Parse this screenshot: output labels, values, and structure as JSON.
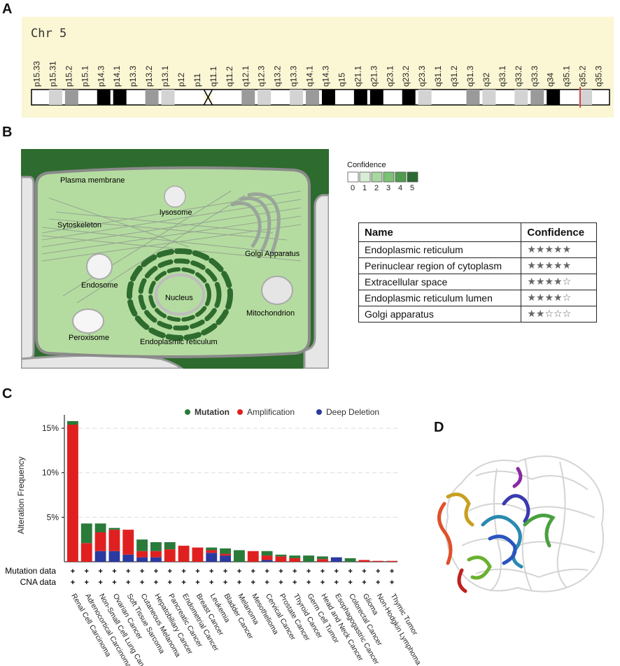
{
  "panels": {
    "a": "A",
    "b": "B",
    "c": "C",
    "d": "D"
  },
  "chromosome": {
    "title": "Chr 5",
    "bands": [
      "p15.33",
      "p15.31",
      "p15.2",
      "p15.1",
      "p14.3",
      "p14.1",
      "p13.3",
      "p13.2",
      "p13.1",
      "p12",
      "p11",
      "q11.1",
      "q11.2",
      "q12.1",
      "q12.3",
      "q13.2",
      "q13.3",
      "q14.1",
      "q14.3",
      "q15",
      "q21.1",
      "q21.3",
      "q23.1",
      "q23.2",
      "q23.3",
      "q31.1",
      "q31.2",
      "q31.3",
      "q32",
      "q33.1",
      "q33.2",
      "q33.3",
      "q34",
      "q35.1",
      "q35.2",
      "q35.3"
    ],
    "marker_color": "#e02020"
  },
  "cell": {
    "labels": {
      "plasma_membrane": "Plasma membrane",
      "lysosome": "lysosome",
      "cytoskeleton": "Sytoskeleton",
      "golgi": "Golgi Apparatus",
      "endosome": "Endosome",
      "nucleus": "Nucleus",
      "mitochondrion": "Mitochondrion",
      "peroxisome": "Peroxisome",
      "er": "Endoplasmic reticulum"
    },
    "colors": {
      "background": "#2e6b2e",
      "cell": "#b5dca0",
      "er": "#2e6b2e"
    }
  },
  "confidence_legend": {
    "title": "Confidence",
    "levels": [
      "0",
      "1",
      "2",
      "3",
      "4",
      "5"
    ],
    "colors": [
      "#ffffff",
      "#d8edd5",
      "#a9d6a2",
      "#7cc276",
      "#4f9c4e",
      "#2b6a31"
    ]
  },
  "location_table": {
    "headers": [
      "Name",
      "Confidence"
    ],
    "rows": [
      {
        "name": "Endoplasmic reticulum",
        "stars": "★★★★★"
      },
      {
        "name": "Perinuclear region of cytoplasm",
        "stars": "★★★★★"
      },
      {
        "name": "Extracellular space",
        "stars": "★★★★☆"
      },
      {
        "name": "Endoplasmic reticulum lumen",
        "stars": "★★★★☆"
      },
      {
        "name": "Golgi apparatus",
        "stars": "★★☆☆☆"
      }
    ]
  },
  "chart_data": {
    "type": "bar",
    "ylabel": "Alteration Frequency",
    "ylim": [
      0,
      16.5
    ],
    "yticks": [
      "5%",
      "10%",
      "15%"
    ],
    "legend": [
      "Mutation",
      "Amplification",
      "Deep Deletion"
    ],
    "colors": {
      "mutation": "#2a7a3a",
      "amplification": "#e02020",
      "deletion": "#2b3aa0"
    },
    "row_labels": [
      "Mutation data",
      "CNA data"
    ],
    "categories": [
      "Renal Cell Carcinoma",
      "Adrenocortical Carcinoma",
      "Non-Small Cell Lung Cancer",
      "Ovarian Cancer",
      "Soft Tissue Sarcoma",
      "Cutaneous Melanoma",
      "Hepatobiliary Cancer",
      "Pancreatic Cancer",
      "Endometrial Cancer",
      "Breast Cancer",
      "Leukemia",
      "Bladder Cancer",
      "Melanoma",
      "Mesothelioma",
      "Cervical Cancer",
      "Prostate Cancer",
      "Thyroid Cancer",
      "Germ Cell Tumor",
      "Head and Neck Cancer",
      "Esophagogastric Cancer",
      "Colorectal Cancer",
      "Glioma",
      "Non-Hodgkin Lymphoma",
      "Thymic Tumor"
    ],
    "series": [
      {
        "name": "Deep Deletion",
        "values": [
          0,
          0,
          1.2,
          1.2,
          0.8,
          0.5,
          0.5,
          0,
          0,
          0,
          1.0,
          0.7,
          0,
          0,
          0.2,
          0,
          0,
          0,
          0,
          0.5,
          0,
          0,
          0,
          0
        ]
      },
      {
        "name": "Amplification",
        "values": [
          15.4,
          2.1,
          2.1,
          2.4,
          2.8,
          0.7,
          0.7,
          1.4,
          1.8,
          1.6,
          0.3,
          0.2,
          0,
          1.2,
          0.5,
          0.6,
          0.4,
          0,
          0.3,
          0,
          0,
          0.2,
          0.1,
          0.1
        ]
      },
      {
        "name": "Mutation",
        "values": [
          0.4,
          2.2,
          1.0,
          0.2,
          0,
          1.3,
          1.0,
          0.8,
          0,
          0,
          0.3,
          0.6,
          1.3,
          0,
          0.5,
          0.2,
          0.3,
          0.7,
          0.3,
          0,
          0.4,
          0,
          0,
          0
        ]
      }
    ],
    "row_mark": "+"
  }
}
